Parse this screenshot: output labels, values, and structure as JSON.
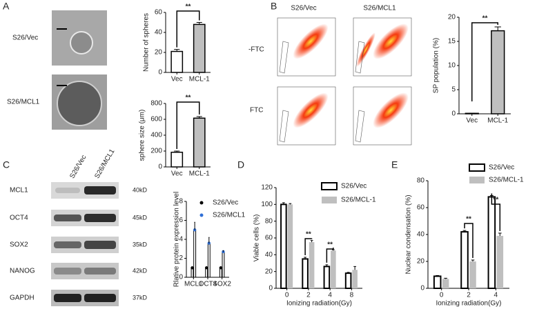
{
  "panels": {
    "A": {
      "label": "A",
      "rows": [
        "S26/Vec",
        "S26/MCL1"
      ]
    },
    "B": {
      "label": "B",
      "columns": [
        "S26/Vec",
        "S26/MCL1"
      ],
      "rows": [
        "-FTC",
        "FTC"
      ]
    },
    "C": {
      "label": "C",
      "columns": [
        "S26/Vec",
        "S26/MCL1"
      ],
      "proteins": [
        "MCL1",
        "OCT4",
        "SOX2",
        "NANOG",
        "GAPDH"
      ],
      "sizes": [
        "40kD",
        "45kD",
        "35kD",
        "42kD",
        "37kD"
      ]
    },
    "D": {
      "label": "D"
    },
    "E": {
      "label": "E"
    }
  },
  "chart_data": [
    {
      "type": "bar",
      "y_label": "Number of spheres",
      "categories": [
        "Vec",
        "MCL-1"
      ],
      "values": [
        21,
        48
      ],
      "errors": [
        2,
        2
      ],
      "colors": [
        "#ffffff",
        "#bfbfbf"
      ],
      "ylim": [
        0,
        60
      ],
      "yticks": [
        0,
        20,
        40,
        60
      ],
      "annotations": [
        "**"
      ]
    },
    {
      "type": "bar",
      "y_label": "sphere size (μm)",
      "categories": [
        "Vec",
        "MCL-1"
      ],
      "values": [
        185,
        615
      ],
      "errors": [
        15,
        20
      ],
      "colors": [
        "#ffffff",
        "#bfbfbf"
      ],
      "ylim": [
        0,
        800
      ],
      "yticks": [
        0,
        200,
        400,
        600,
        800
      ],
      "annotations": [
        "**"
      ]
    },
    {
      "type": "bar",
      "y_label": "SP population (%)",
      "categories": [
        "Vec",
        "MCL-1"
      ],
      "values": [
        0.1,
        17.2
      ],
      "errors": [
        0,
        0.8
      ],
      "colors": [
        "#ffffff",
        "#bfbfbf"
      ],
      "ylim": [
        0,
        20
      ],
      "yticks": [
        0,
        5,
        10,
        15,
        20
      ],
      "annotations": [
        "**"
      ]
    },
    {
      "type": "bar",
      "y_label": "Rlative protein expression level",
      "categories": [
        "MCL1",
        "OCT4",
        "SOX2"
      ],
      "series": [
        {
          "name": "S26/Vec",
          "color": "#000000",
          "values": [
            1,
            1,
            1
          ],
          "errors": [
            0.05,
            0.1,
            0.05
          ]
        },
        {
          "name": "S26/MCL1",
          "color": "#2f6fd6",
          "values": [
            5,
            3.6,
            2.7
          ],
          "errors": [
            0.8,
            0.6,
            0.1
          ]
        }
      ],
      "ylim": [
        0,
        8
      ],
      "yticks": [
        0,
        2,
        4,
        6,
        8
      ],
      "annotations": []
    },
    {
      "type": "bar",
      "y_label": "Viable cells (%)",
      "x_label": "Ionizing radiation(Gy)",
      "categories": [
        "0",
        "2",
        "4",
        "8"
      ],
      "series": [
        {
          "name": "S26/Vec",
          "color": "#ffffff",
          "values": [
            100,
            35,
            26,
            18
          ],
          "errors": [
            2,
            2,
            2,
            1
          ]
        },
        {
          "name": "S26/MCL-1",
          "color": "#bfbfbf",
          "values": [
            100,
            55,
            45,
            22
          ],
          "errors": [
            1,
            2,
            1,
            4
          ]
        }
      ],
      "ylim": [
        0,
        120
      ],
      "yticks": [
        0,
        20,
        40,
        60,
        80,
        100,
        120
      ],
      "annotations": [
        "**",
        "**"
      ]
    },
    {
      "type": "bar",
      "y_label": "Nuclear condensation (%)",
      "x_label": "Ionizing radiation(Gy)",
      "categories": [
        "0",
        "2",
        "4"
      ],
      "series": [
        {
          "name": "S26/Vec",
          "color": "#ffffff",
          "values": [
            9,
            42,
            68
          ],
          "errors": [
            0.5,
            1,
            1
          ]
        },
        {
          "name": "S26/MCL-1",
          "color": "#bfbfbf",
          "values": [
            7,
            20,
            39
          ],
          "errors": [
            0.5,
            1,
            2
          ]
        }
      ],
      "ylim": [
        0,
        80
      ],
      "yticks": [
        0,
        20,
        40,
        60,
        80
      ],
      "annotations": [
        "**",
        "**"
      ]
    }
  ]
}
